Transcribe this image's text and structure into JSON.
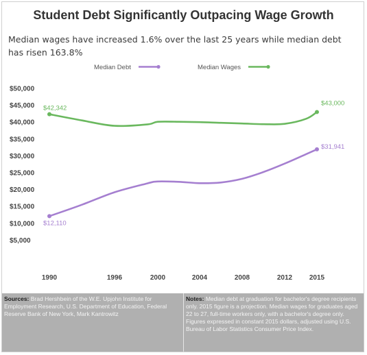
{
  "title": "Student Debt Significantly Outpacing Wage Growth",
  "subtitle": "Median wages have increased 1.6% over the last 25 years while median debt has risen 163.8%",
  "colors": {
    "debt": "#a57fd0",
    "wages": "#6ab85e",
    "footer_bg": "#b0b0b0"
  },
  "chart_data": {
    "type": "line",
    "x": [
      1990,
      1993,
      1996,
      1999,
      2000,
      2002,
      2004,
      2006,
      2008,
      2010,
      2012,
      2014,
      2015
    ],
    "x_ticks": [
      "1990",
      "1996",
      "2000",
      "2004",
      "2008",
      "2012",
      "2015"
    ],
    "y_ticks": [
      "$50,000",
      "$45,000",
      "$40,000",
      "$35,000",
      "$30,000",
      "$25,000",
      "$20,000",
      "$15,000",
      "$10,000",
      "$5,000"
    ],
    "ylim": [
      0,
      50000
    ],
    "grid": false,
    "legend_position": "top-center",
    "series": [
      {
        "name": "Median Debt",
        "values": [
          12110,
          15500,
          19200,
          21800,
          22400,
          22300,
          21900,
          22100,
          23200,
          25200,
          27700,
          30500,
          31941
        ]
      },
      {
        "name": "Median Wages",
        "values": [
          42342,
          40500,
          38900,
          39300,
          40100,
          40100,
          40000,
          39800,
          39600,
          39400,
          39500,
          41000,
          43000
        ]
      }
    ],
    "annotations": [
      {
        "series": 0,
        "index": 0,
        "text": "$12,110"
      },
      {
        "series": 0,
        "index": 12,
        "text": "$31,941"
      },
      {
        "series": 1,
        "index": 0,
        "text": "$42,342"
      },
      {
        "series": 1,
        "index": 12,
        "text": "$43,000"
      }
    ]
  },
  "footer": {
    "sources_label": "Sources:",
    "sources_text": "Brad Hershbein of the W.E. Upjohn Institute for Employment Research, U.S. Department of Education, Federal Reserve Bank of New York, Mark Kantrowitz",
    "notes_label": "Notes:",
    "notes_text": "Median debt at graduation for bachelor's degree recipients only. 2015 figure is a projection. Median wages for graduates aged 22 to 27, full-time workers only, with a bachelor's degree only. Figures expressed in constant 2015 dollars, adjusted using U.S. Bureau of Labor Statistics Consumer Price Index."
  }
}
